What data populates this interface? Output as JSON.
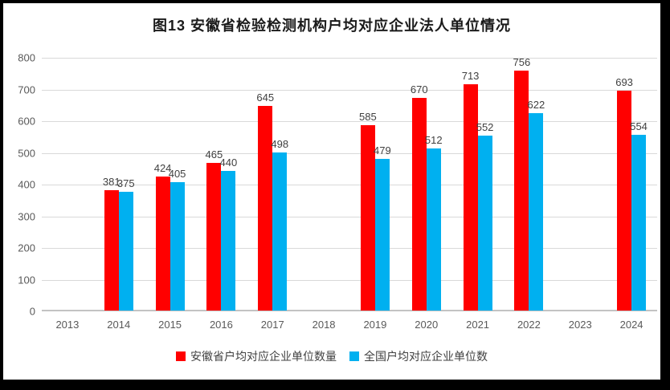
{
  "chart": {
    "title": "图13 安徽省检验检测机构户均对应企业法人单位情况",
    "legend": {
      "anhui_label": "安徽省户均对应企业单位数量",
      "national_label": "全国户均对应企业单位数"
    },
    "colors": {
      "anhui": "#ff0000",
      "national": "#00b0f0",
      "gridline": "#d9d9d9",
      "axis_line": "#c3c3c3",
      "tick_text": "#595959",
      "data_label_text": "#404040"
    }
  },
  "chart_data": {
    "type": "bar",
    "title": "图13 安徽省检验检测机构户均对应企业法人单位情况",
    "categories": [
      "2013",
      "2014",
      "2015",
      "2016",
      "2017",
      "2018",
      "2019",
      "2020",
      "2021",
      "2022",
      "2023",
      "2024"
    ],
    "series": [
      {
        "name": "安徽省户均对应企业单位数量",
        "color": "#ff0000",
        "values": [
          null,
          381,
          424,
          465,
          645,
          null,
          585,
          670,
          713,
          756,
          null,
          693
        ]
      },
      {
        "name": "全国户均对应企业单位数",
        "color": "#00b0f0",
        "values": [
          null,
          375,
          405,
          440,
          498,
          null,
          479,
          512,
          552,
          622,
          null,
          554
        ]
      }
    ],
    "xlabel": "",
    "ylabel": "",
    "ylim": [
      0,
      800
    ],
    "ytick_interval": 100,
    "yticks": [
      0,
      100,
      200,
      300,
      400,
      500,
      600,
      700,
      800
    ],
    "grid": true,
    "data_labels": true,
    "legend_position": "bottom"
  }
}
